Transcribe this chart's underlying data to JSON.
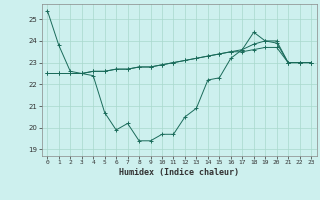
{
  "xlabel": "Humidex (Indice chaleur)",
  "background_color": "#cdf0ee",
  "line_color": "#1a6b5a",
  "grid_color": "#a8d8cc",
  "xlim": [
    -0.5,
    23.5
  ],
  "ylim": [
    18.7,
    25.7
  ],
  "yticks": [
    19,
    20,
    21,
    22,
    23,
    24,
    25
  ],
  "xticks": [
    0,
    1,
    2,
    3,
    4,
    5,
    6,
    7,
    8,
    9,
    10,
    11,
    12,
    13,
    14,
    15,
    16,
    17,
    18,
    19,
    20,
    21,
    22,
    23
  ],
  "series1": [
    25.4,
    23.8,
    22.6,
    22.5,
    22.4,
    20.7,
    19.9,
    20.2,
    19.4,
    19.4,
    19.7,
    19.7,
    20.5,
    20.9,
    22.2,
    22.3,
    23.2,
    23.6,
    24.4,
    24.0,
    23.9,
    23.0,
    23.0,
    23.0
  ],
  "series2": [
    22.5,
    22.5,
    22.5,
    22.5,
    22.6,
    22.6,
    22.7,
    22.7,
    22.8,
    22.8,
    22.9,
    23.0,
    23.1,
    23.2,
    23.3,
    23.4,
    23.5,
    23.5,
    23.6,
    23.7,
    23.7,
    23.0,
    23.0,
    23.0
  ],
  "series3": [
    22.5,
    22.5,
    22.5,
    22.5,
    22.6,
    22.6,
    22.7,
    22.7,
    22.8,
    22.8,
    22.9,
    23.0,
    23.1,
    23.2,
    23.3,
    23.4,
    23.5,
    23.6,
    23.85,
    24.0,
    24.0,
    23.0,
    23.0,
    23.0
  ]
}
